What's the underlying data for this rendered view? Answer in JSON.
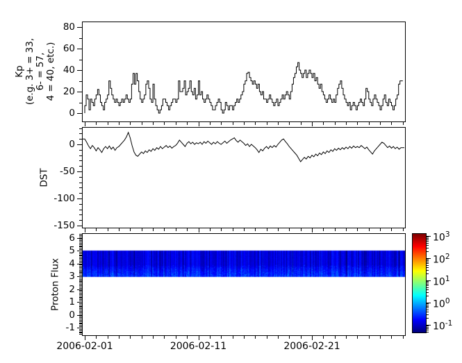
{
  "figure": {
    "background": "#ffffff",
    "axis_color": "#000000",
    "x_axis": {
      "tick_labels": [
        "2006-02-01",
        "2006-02-11",
        "2006-02-21"
      ],
      "major_tick_days": [
        0,
        10,
        20
      ],
      "minor_tick_every_days": 1,
      "range_days": [
        -0.18,
        28.13
      ]
    }
  },
  "chart_data": [
    {
      "panel": "kp",
      "type": "line",
      "line_style": "step",
      "line_color": "#000000",
      "ylabel_lines": [
        "Kp",
        "(e.g. 3+ = 33,",
        "6- = 57,",
        "4 = 40, etc.)"
      ],
      "yticks": [
        0,
        20,
        40,
        60,
        80
      ],
      "minor_ytick_step": 10,
      "ylim": [
        -7.8,
        85.2
      ],
      "x_start_day": 0,
      "x_step_days": 0.125,
      "values": [
        7,
        17,
        13,
        3,
        13,
        10,
        7,
        13,
        17,
        22,
        17,
        10,
        7,
        3,
        10,
        13,
        17,
        30,
        23,
        17,
        13,
        10,
        13,
        10,
        7,
        10,
        13,
        10,
        13,
        17,
        13,
        10,
        13,
        27,
        37,
        27,
        37,
        30,
        20,
        13,
        10,
        13,
        17,
        27,
        30,
        23,
        13,
        10,
        27,
        13,
        7,
        3,
        0,
        3,
        7,
        13,
        13,
        10,
        7,
        3,
        7,
        10,
        13,
        13,
        10,
        13,
        30,
        20,
        20,
        23,
        30,
        17,
        20,
        23,
        30,
        20,
        17,
        23,
        13,
        17,
        30,
        17,
        20,
        13,
        10,
        13,
        17,
        13,
        10,
        7,
        3,
        3,
        7,
        10,
        13,
        10,
        3,
        0,
        3,
        10,
        7,
        3,
        7,
        7,
        3,
        7,
        10,
        13,
        10,
        13,
        17,
        20,
        27,
        30,
        37,
        38,
        33,
        30,
        27,
        30,
        27,
        23,
        27,
        20,
        17,
        20,
        13,
        13,
        10,
        13,
        17,
        13,
        10,
        7,
        10,
        13,
        7,
        10,
        13,
        17,
        13,
        17,
        20,
        17,
        13,
        20,
        27,
        33,
        37,
        43,
        47,
        40,
        37,
        33,
        37,
        40,
        33,
        37,
        40,
        37,
        33,
        37,
        30,
        33,
        27,
        23,
        27,
        20,
        17,
        13,
        10,
        13,
        17,
        13,
        10,
        13,
        10,
        17,
        23,
        27,
        30,
        23,
        17,
        13,
        10,
        7,
        10,
        3,
        7,
        10,
        7,
        3,
        7,
        10,
        13,
        10,
        7,
        13,
        23,
        20,
        13,
        10,
        7,
        13,
        17,
        13,
        10,
        7,
        3,
        7,
        13,
        17,
        10,
        7,
        13,
        10,
        7,
        3,
        7,
        13,
        17,
        27,
        30,
        30
      ]
    },
    {
      "panel": "dst",
      "type": "line",
      "line_style": "plain",
      "line_color": "#000000",
      "ylabel": "DST",
      "yticks": [
        0,
        -50,
        -100,
        -150
      ],
      "minor_ytick_step": 10,
      "ylim": [
        -153.8,
        30.8
      ],
      "x_start_day": 0,
      "x_step_days": 0.16667,
      "values": [
        10,
        4,
        -3,
        -8,
        -2,
        -6,
        -12,
        -6,
        -10,
        -15,
        -8,
        -4,
        -8,
        -3,
        -9,
        -5,
        -11,
        -6,
        -4,
        0,
        4,
        8,
        14,
        22,
        12,
        -2,
        -14,
        -20,
        -22,
        -18,
        -14,
        -17,
        -12,
        -15,
        -10,
        -13,
        -8,
        -11,
        -6,
        -9,
        -4,
        -8,
        -5,
        -2,
        -6,
        -3,
        -7,
        -4,
        -2,
        2,
        8,
        4,
        0,
        -4,
        2,
        5,
        1,
        4,
        0,
        3,
        1,
        4,
        0,
        5,
        2,
        6,
        3,
        0,
        4,
        1,
        5,
        2,
        0,
        3,
        6,
        2,
        5,
        8,
        10,
        12,
        7,
        4,
        8,
        5,
        2,
        -2,
        1,
        -4,
        0,
        -3,
        -6,
        -10,
        -15,
        -9,
        -12,
        -7,
        -4,
        -8,
        -3,
        -6,
        -2,
        -5,
        0,
        4,
        8,
        10,
        5,
        1,
        -4,
        -8,
        -12,
        -16,
        -20,
        -26,
        -32,
        -28,
        -24,
        -27,
        -22,
        -25,
        -20,
        -23,
        -18,
        -21,
        -16,
        -19,
        -14,
        -17,
        -12,
        -15,
        -10,
        -13,
        -8,
        -11,
        -7,
        -10,
        -6,
        -9,
        -5,
        -8,
        -4,
        -7,
        -3,
        -6,
        -4,
        -6,
        -2,
        -5,
        -8,
        -5,
        -10,
        -14,
        -18,
        -12,
        -8,
        -4,
        0,
        4,
        2,
        -2,
        -6,
        -3,
        -7,
        -4,
        -8,
        -5,
        -9,
        -6
      ]
    },
    {
      "panel": "proton_flux",
      "type": "heatmap",
      "ylabel": "Proton Flux",
      "yticks": [
        6,
        5,
        4,
        3,
        2,
        1,
        0,
        -1
      ],
      "minor_ytick_step": 0.1,
      "ylim": [
        -1.54,
        6.3
      ],
      "band": {
        "y_min": 3,
        "y_max": 5,
        "base_flux_range": [
          0.07,
          0.2
        ],
        "max_streak_flux": 0.9,
        "texture_seed": 20060201
      },
      "colorbar": {
        "scale": "log",
        "colormap": "jet",
        "tick_base": "10",
        "tick_exponents": [
          3,
          2,
          1,
          0,
          -1
        ],
        "range_exponents": [
          -1.31,
          3.09
        ]
      }
    }
  ]
}
